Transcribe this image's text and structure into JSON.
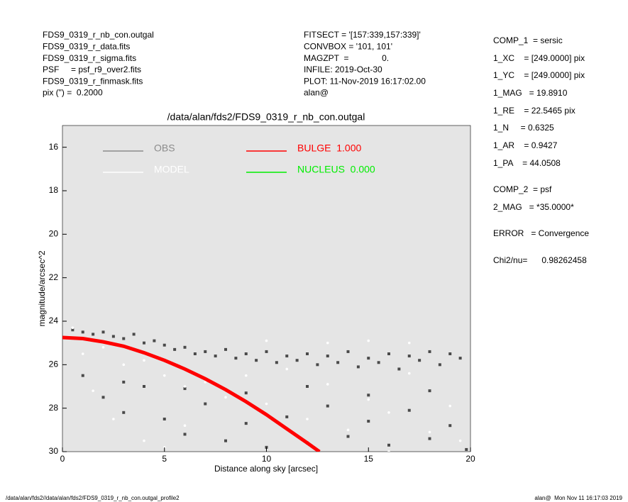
{
  "header": {
    "left": [
      "FDS9_0319_r_nb_con.outgal",
      "FDS9_0319_r_data.fits",
      "FDS9_0319_r_sigma.fits",
      "PSF     = psf_r9_over2.fits",
      "FDS9_0319_r_finmask.fits",
      "pix (\") =  0.2000"
    ],
    "middle": [
      "FITSECT = '[157:339,157:339]'",
      "CONVBOX = '101, 101'",
      "MAGZPT  =              0.",
      "INFILE: 2019-Oct-30",
      "PLOT: 11-Nov-2019 16:17:02.00",
      "alan@"
    ]
  },
  "fit_params": [
    "COMP_1  = sersic",
    "1_XC    = [249.0000] pix",
    "1_YC    = [249.0000] pix",
    "1_MAG   = 19.8910",
    "1_RE    = 22.5465 pix",
    "1_N     = 0.6325",
    "1_AR    = 0.9427",
    "1_PA    = 44.0508",
    "COMP_2  = psf",
    "2_MAG   = *35.0000*",
    "ERROR   = Convergence",
    "Chi2/nu=      0.98262458"
  ],
  "footer": {
    "left": "/data/alan/fds2//data/alan/fds2/FDS9_0319_r_nb_con.outgal_profile2",
    "right": "alan@  Mon Nov 11 16:17:03 2019"
  },
  "chart_data": {
    "type": "scatter",
    "title": "/data/alan/fds2/FDS9_0319_r_nb_con.outgal",
    "xlabel": "Distance along sky [arcsec]",
    "ylabel": "magnitude/arcsec^2",
    "xlim": [
      0,
      20
    ],
    "ylim": [
      30,
      15
    ],
    "xticks": [
      0,
      5,
      10,
      15,
      20
    ],
    "yticks": [
      16,
      18,
      20,
      22,
      24,
      26,
      28,
      30
    ],
    "background": "#e5e5e5",
    "series": [
      {
        "name": "OBS",
        "color": "#4a4a4a",
        "legend_color": "#8c8c8c",
        "mark": "square",
        "x": [
          0.5,
          1,
          1.5,
          2,
          2.5,
          3,
          3.5,
          4,
          4.5,
          5,
          5.5,
          6,
          6.5,
          7,
          7.5,
          8,
          8.5,
          9,
          9.5,
          10,
          10.5,
          11,
          11.5,
          12,
          12.5,
          13,
          13.5,
          14,
          14.5,
          15,
          15.5,
          16,
          16.5,
          17,
          17.5,
          18,
          18.5,
          19,
          19.5,
          2,
          3,
          4,
          5,
          6,
          7,
          8,
          9,
          10,
          11,
          12,
          13,
          14,
          15,
          16,
          17,
          18,
          19,
          19.8,
          1,
          3,
          6,
          9,
          12,
          15,
          18
        ],
        "values": [
          24.4,
          24.5,
          24.6,
          24.5,
          24.7,
          24.8,
          24.6,
          25.0,
          24.9,
          25.1,
          25.3,
          25.2,
          25.5,
          25.4,
          25.6,
          25.3,
          25.7,
          25.5,
          25.8,
          25.4,
          25.9,
          25.6,
          25.8,
          25.5,
          26.0,
          25.6,
          25.9,
          25.4,
          26.1,
          25.7,
          25.9,
          25.5,
          26.2,
          25.6,
          25.8,
          25.4,
          26.0,
          25.5,
          25.7,
          27.5,
          28.2,
          27.0,
          28.5,
          29.2,
          27.8,
          29.5,
          28.7,
          29.8,
          28.4,
          29.6,
          27.9,
          29.3,
          28.6,
          29.7,
          28.1,
          29.4,
          28.8,
          29.9,
          26.5,
          26.8,
          27.1,
          27.3,
          27.0,
          27.4,
          27.2
        ]
      },
      {
        "name": "MODEL",
        "color": "#ffffff",
        "mark": "dot",
        "x": [
          0.5,
          1,
          2,
          3,
          4,
          5,
          6,
          7,
          8,
          9,
          10,
          11,
          12,
          13,
          14,
          15,
          16,
          17,
          18,
          19,
          1.5,
          2.5,
          4,
          5,
          6,
          16,
          19.5,
          13,
          15,
          17,
          10
        ],
        "values": [
          24.3,
          25.5,
          25.2,
          26.0,
          25.8,
          26.5,
          27.0,
          26.8,
          27.5,
          26.5,
          27.8,
          26.2,
          28.5,
          26.9,
          29.0,
          27.6,
          28.2,
          26.4,
          29.1,
          27.9,
          27.2,
          28.5,
          29.5,
          29.8,
          28.8,
          30.0,
          29.5,
          25.0,
          24.9,
          25.0,
          24.9
        ]
      },
      {
        "name": "BULGE  1.000",
        "color": "#ff0000",
        "mark": "line",
        "x": [
          0,
          1,
          2,
          3,
          4,
          5,
          6,
          7,
          8,
          9,
          10,
          11,
          12,
          12.6
        ],
        "values": [
          24.75,
          24.8,
          24.95,
          25.15,
          25.45,
          25.8,
          26.2,
          26.65,
          27.15,
          27.7,
          28.3,
          28.95,
          29.6,
          30
        ]
      },
      {
        "name": "NUCLEUS  0.000",
        "color": "#00ee00",
        "mark": "line",
        "x": [],
        "values": []
      }
    ]
  }
}
